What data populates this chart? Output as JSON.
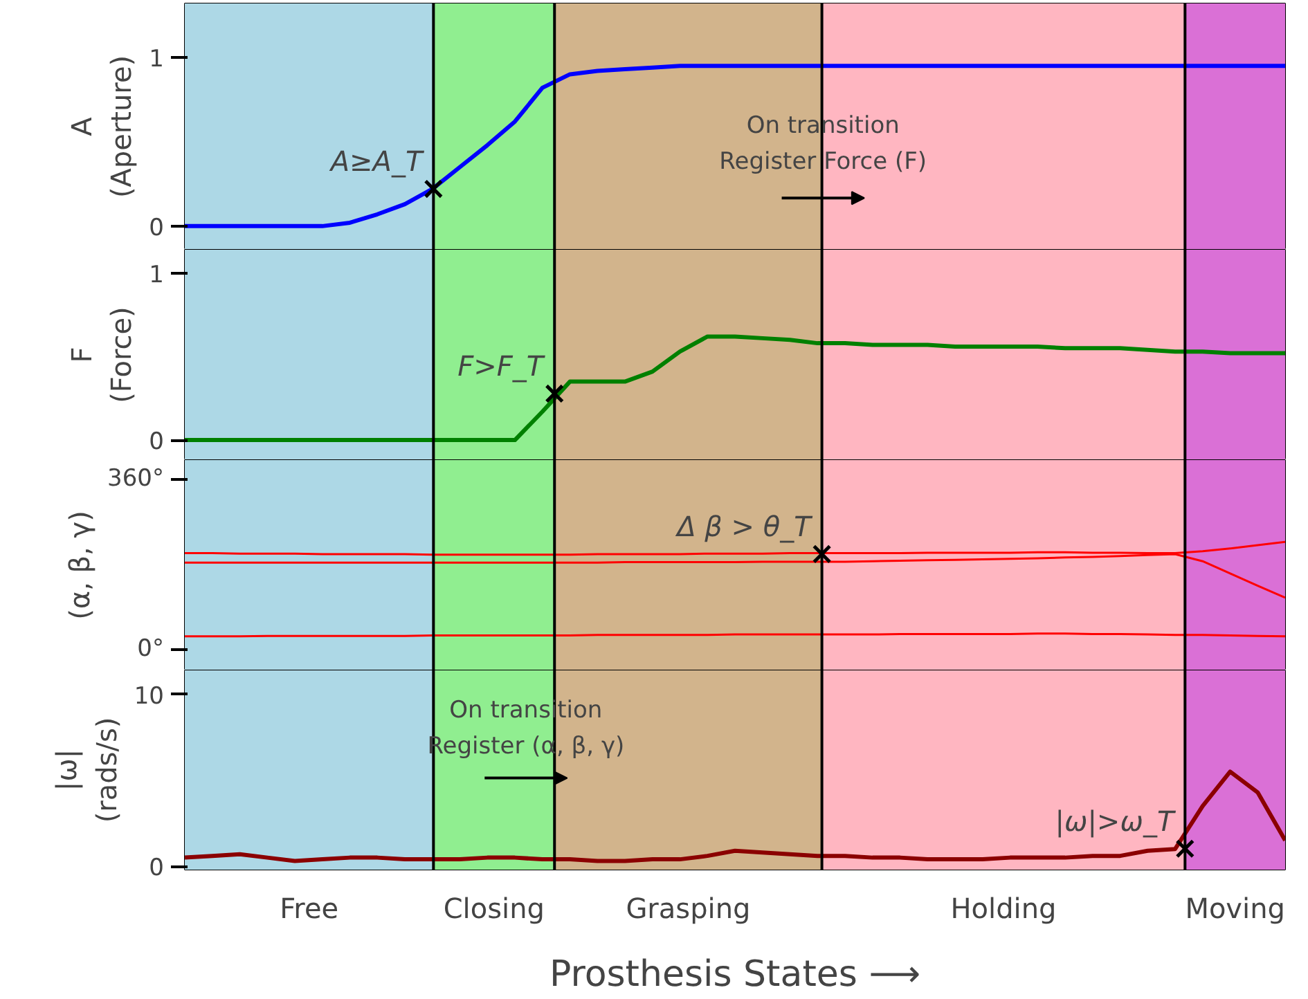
{
  "chart_data": [
    {
      "type": "line",
      "ylabel": "A\n(Aperture)",
      "categories": [
        null,
        null,
        null,
        null,
        null,
        null,
        null,
        null,
        null,
        null,
        null,
        null,
        null,
        null,
        null,
        null,
        null,
        null,
        null,
        null,
        null,
        null,
        null,
        null,
        null,
        null,
        null,
        null,
        null,
        null,
        null,
        null,
        null,
        null,
        null,
        null,
        null,
        null,
        null,
        null,
        null
      ],
      "ylim": [
        -0.14,
        1.32
      ],
      "yticks": [
        0,
        1
      ],
      "tick_labels": "y",
      "grid": "x",
      "series": [
        {
          "color": "#0000ff",
          "values": [
            0,
            0,
            0,
            0,
            0,
            0,
            0.02,
            0.07,
            0.13,
            0.22,
            0.35,
            0.48,
            0.62,
            0.82,
            0.9,
            0.92,
            0.93,
            0.94,
            0.95,
            0.95,
            0.95,
            0.95,
            0.95,
            0.95,
            0.95,
            0.95,
            0.95,
            0.95,
            0.95,
            0.95,
            0.95,
            0.95,
            0.95,
            0.95,
            0.95,
            0.95,
            0.95,
            0.95,
            0.95,
            0.95,
            0.95
          ]
        }
      ],
      "annotations": [
        "A≥A_T",
        "On transition\nRegister Force (F)"
      ]
    },
    {
      "type": "line",
      "ylabel": "F\n(Force)",
      "categories": [
        null,
        null,
        null,
        null,
        null,
        null,
        null,
        null,
        null,
        null,
        null,
        null,
        null,
        null,
        null,
        null,
        null,
        null,
        null,
        null,
        null,
        null,
        null,
        null,
        null,
        null,
        null,
        null,
        null,
        null,
        null,
        null,
        null,
        null,
        null,
        null,
        null,
        null,
        null,
        null,
        null
      ],
      "ylim": [
        -0.12,
        1.14
      ],
      "yticks": [
        0,
        1
      ],
      "tick_labels": "y",
      "grid": "x",
      "series": [
        {
          "color": "#008000",
          "values": [
            0,
            0,
            0,
            0,
            0,
            0,
            0,
            0,
            0,
            0,
            0,
            0,
            0,
            0.17,
            0.35,
            0.35,
            0.35,
            0.41,
            0.53,
            0.62,
            0.62,
            0.61,
            0.6,
            0.58,
            0.58,
            0.57,
            0.57,
            0.57,
            0.56,
            0.56,
            0.56,
            0.56,
            0.55,
            0.55,
            0.55,
            0.54,
            0.53,
            0.53,
            0.52,
            0.52,
            0.52
          ]
        }
      ],
      "annotations": [
        "F>F_T"
      ]
    },
    {
      "type": "line",
      "ylabel": "(α, β, γ)",
      "categories": [
        null,
        null,
        null,
        null,
        null,
        null,
        null,
        null,
        null,
        null,
        null,
        null,
        null,
        null,
        null,
        null,
        null,
        null,
        null,
        null,
        null,
        null,
        null,
        null,
        null,
        null,
        null,
        null,
        null,
        null,
        null,
        null,
        null,
        null,
        null,
        null,
        null,
        null,
        null,
        null,
        null
      ],
      "ylim": [
        -45,
        400
      ],
      "yticks": [
        {
          "value": 0,
          "label": "0°"
        },
        {
          "value": 360,
          "label": "360°"
        }
      ],
      "tick_labels": "y",
      "grid": "x",
      "series": [
        {
          "color": "#ff0000",
          "values": [
            203,
            203,
            202,
            202,
            202,
            201,
            201,
            201,
            201,
            200,
            200,
            200,
            200,
            200,
            200,
            201,
            201,
            201,
            201,
            202,
            202,
            202,
            203,
            203,
            203,
            203,
            203,
            204,
            204,
            204,
            204,
            205,
            205,
            204,
            204,
            203,
            203,
            207,
            213,
            220,
            227
          ]
        },
        {
          "color": "#ff0000",
          "values": [
            183,
            183,
            183,
            183,
            183,
            183,
            183,
            183,
            183,
            183,
            183,
            183,
            183,
            183,
            183,
            183,
            184,
            184,
            184,
            184,
            184,
            185,
            185,
            185,
            185,
            186,
            187,
            188,
            189,
            190,
            191,
            192,
            194,
            195,
            197,
            199,
            201,
            186,
            160,
            134,
            109
          ]
        },
        {
          "color": "#ff0000",
          "values": [
            27,
            27,
            27,
            28,
            28,
            28,
            28,
            28,
            28,
            29,
            29,
            29,
            29,
            29,
            29,
            30,
            30,
            30,
            30,
            30,
            31,
            31,
            31,
            31,
            31,
            31,
            32,
            32,
            32,
            32,
            32,
            33,
            33,
            32,
            32,
            31,
            30,
            30,
            29,
            28,
            27
          ]
        }
      ],
      "annotations": [
        "Δ β > θ_T"
      ]
    },
    {
      "type": "line",
      "ylabel": "|ω|\n(rads/s)",
      "xlabel": "Prosthesis States ⟶",
      "categories": [
        null,
        null,
        null,
        null,
        null,
        null,
        null,
        null,
        null,
        null,
        null,
        null,
        null,
        null,
        null,
        null,
        null,
        null,
        null,
        null,
        null,
        null,
        null,
        null,
        null,
        null,
        null,
        null,
        null,
        null,
        null,
        null,
        null,
        null,
        null,
        null,
        null,
        null,
        null,
        null,
        null
      ],
      "ylim": [
        -0.2,
        11.4
      ],
      "yticks": [
        0,
        10
      ],
      "tick_labels": "y",
      "grid": "x",
      "series": [
        {
          "color": "#8b0000",
          "values": [
            0.5,
            0.6,
            0.7,
            0.5,
            0.3,
            0.4,
            0.5,
            0.5,
            0.4,
            0.4,
            0.4,
            0.5,
            0.5,
            0.4,
            0.4,
            0.3,
            0.3,
            0.4,
            0.4,
            0.6,
            0.9,
            0.8,
            0.7,
            0.6,
            0.6,
            0.5,
            0.5,
            0.4,
            0.4,
            0.4,
            0.5,
            0.5,
            0.5,
            0.6,
            0.6,
            0.9,
            1.0,
            3.5,
            5.5,
            4.3,
            1.5
          ]
        }
      ],
      "annotations": [
        "|ω|>ω_T",
        "On transition\nRegister (α, β, γ)",
        "Free",
        "Closing",
        "Grasping",
        "Holding",
        "Moving"
      ]
    }
  ]
}
